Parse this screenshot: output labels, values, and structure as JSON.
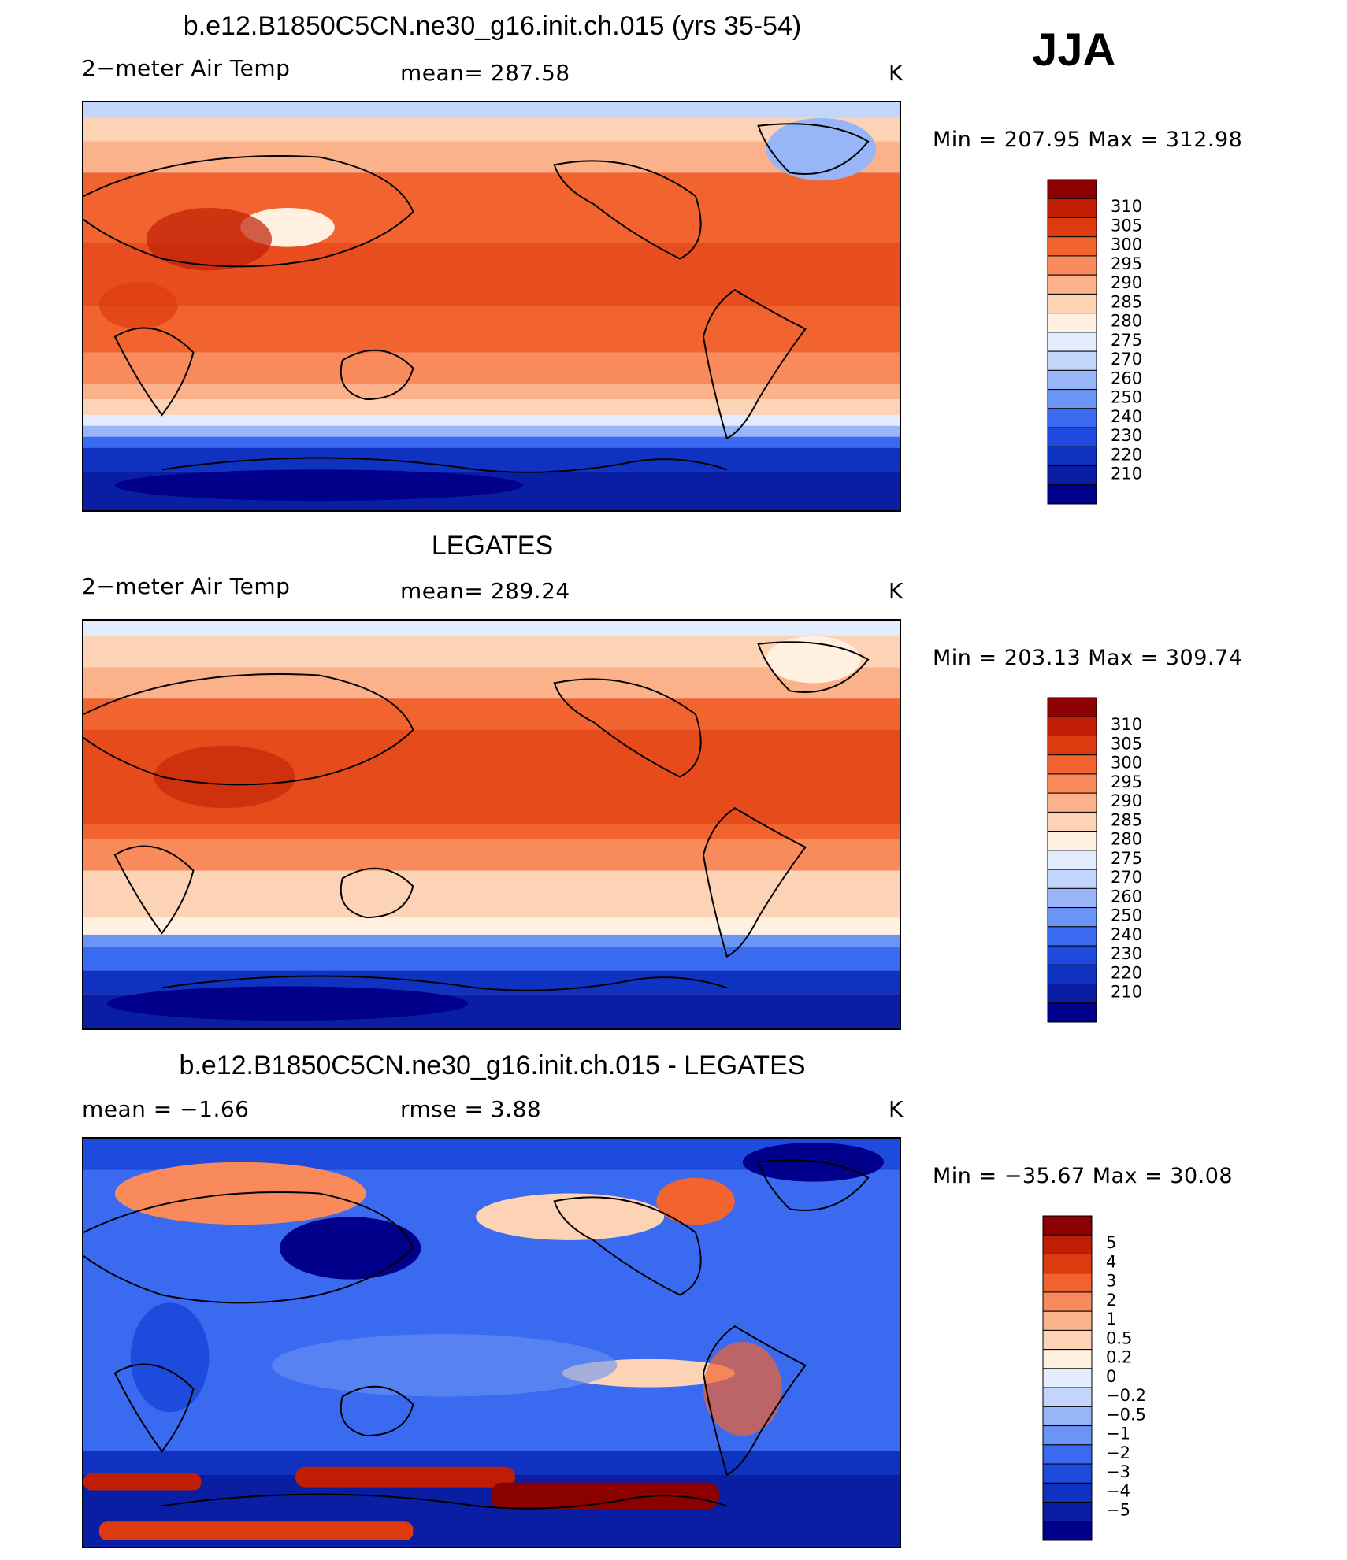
{
  "season": "JJA",
  "colors": {
    "temp_scale": [
      "#00008b",
      "#0a1ea3",
      "#0f32c0",
      "#1f4ade",
      "#3a6af0",
      "#6b95f4",
      "#98b6f7",
      "#c2d6fb",
      "#e2ecfd",
      "#fff0e0",
      "#fdd3b6",
      "#fbb18a",
      "#f88a5c",
      "#f2642f",
      "#de3a10",
      "#bf1e05",
      "#8b0000"
    ],
    "diff_scale": [
      "#00008b",
      "#0a1ea3",
      "#0f32c0",
      "#1f4ade",
      "#3a6af0",
      "#6b95f4",
      "#98b6f7",
      "#c2d6fb",
      "#e2ecfd",
      "#fff0e0",
      "#fdd3b6",
      "#fbb18a",
      "#f88a5c",
      "#f2642f",
      "#de3a10",
      "#bf1e05",
      "#8b0000"
    ]
  },
  "chart_data": [
    {
      "type": "heatmap",
      "title": "b.e12.B1850C5CN.ne30_g16.init.ch.015 (yrs 35-54)",
      "variable": "2−meter Air Temp",
      "mean_label": "mean=  287.58",
      "units": "K",
      "minmax": "Min  =  207.95  Max  =  312.98",
      "min": 207.95,
      "max": 312.98,
      "mean": 287.58,
      "legend_levels": [
        "310",
        "305",
        "300",
        "295",
        "290",
        "285",
        "280",
        "275",
        "270",
        "260",
        "250",
        "240",
        "230",
        "220",
        "210"
      ]
    },
    {
      "type": "heatmap",
      "title": "LEGATES",
      "variable": "2−meter Air Temp",
      "mean_label": "mean=  289.24",
      "units": "K",
      "minmax": "Min  =  203.13  Max  =  309.74",
      "min": 203.13,
      "max": 309.74,
      "mean": 289.24,
      "legend_levels": [
        "310",
        "305",
        "300",
        "295",
        "290",
        "285",
        "280",
        "275",
        "270",
        "260",
        "250",
        "240",
        "230",
        "220",
        "210"
      ]
    },
    {
      "type": "heatmap",
      "title": "b.e12.B1850C5CN.ne30_g16.init.ch.015 - LEGATES",
      "mean_label": "mean  =    −1.66",
      "rmse_label": "rmse  =     3.88",
      "units": "K",
      "minmax": "Min  =  −35.67  Max  =    30.08",
      "min": -35.67,
      "max": 30.08,
      "mean": -1.66,
      "rmse": 3.88,
      "legend_levels": [
        "5",
        "4",
        "3",
        "2",
        "1",
        "0.5",
        "0.2",
        "0",
        "−0.2",
        "−0.5",
        "−1",
        "−2",
        "−3",
        "−4",
        "−5"
      ]
    }
  ]
}
